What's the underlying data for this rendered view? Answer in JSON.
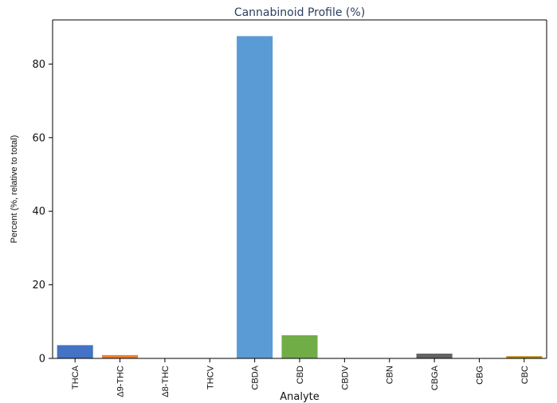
{
  "chart_data": {
    "type": "bar",
    "title": "Cannabinoid Profile (%)",
    "xlabel": "Analyte",
    "ylabel": "Percent (%, relative to total)",
    "ylim": [
      0,
      92
    ],
    "yticks": [
      0,
      20,
      40,
      60,
      80
    ],
    "grid": false,
    "categories": [
      "THCA",
      "Δ9-THC",
      "Δ8-THC",
      "THCV",
      "CBDA",
      "CBD",
      "CBDV",
      "CBN",
      "CBGA",
      "CBG",
      "CBC"
    ],
    "values": [
      3.6,
      0.9,
      0,
      0,
      87.6,
      6.3,
      0,
      0,
      1.3,
      0,
      0.6
    ],
    "colors": [
      "#4472c4",
      "#ed7d31",
      "#a5a5a5",
      "#ffc000",
      "#5b9bd5",
      "#70ad47",
      "#264478",
      "#9e480e",
      "#636363",
      "#997300",
      "#b8860b"
    ]
  }
}
